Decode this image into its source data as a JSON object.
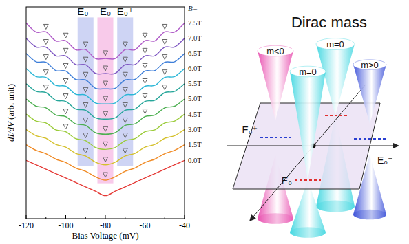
{
  "chart_data": {
    "type": "line",
    "xlabel": "Bias Voltage (mV)",
    "ylabel": "dI/dV (arb. unit)",
    "series_title": "B=",
    "x": [
      -120,
      -115,
      -110,
      -105,
      -100,
      -95,
      -90,
      -85,
      -80,
      -75,
      -70,
      -65,
      -60,
      -55,
      -50,
      -45,
      -40
    ],
    "xlim": [
      -120,
      -40
    ],
    "xticks": [
      -120,
      -100,
      -80,
      -60,
      -40
    ],
    "ylim": [
      0,
      12
    ],
    "tick_labels": "x",
    "marker": "triangle",
    "series": [
      {
        "name": "0.0T",
        "color": "#e53935",
        "values": [
          3.3,
          3.05,
          2.8,
          2.55,
          2.3,
          2.05,
          1.8,
          1.55,
          1.3,
          1.55,
          1.8,
          2.05,
          2.3,
          2.55,
          2.8,
          3.05,
          3.3
        ]
      },
      {
        "name": "1.5T",
        "color": "#f08a24",
        "values": [
          4.18,
          3.87,
          3.68,
          3.37,
          3.18,
          2.87,
          2.68,
          2.37,
          2.18,
          2.37,
          2.68,
          2.87,
          3.18,
          3.37,
          3.68,
          3.87,
          4.18
        ],
        "peaks": [
          -80
        ]
      },
      {
        "name": "3.0T",
        "color": "#d4c02a",
        "values": [
          5.05,
          4.7,
          4.55,
          4.2,
          4.05,
          3.7,
          3.55,
          3.2,
          3.05,
          3.2,
          3.55,
          3.7,
          4.05,
          4.2,
          4.55,
          4.7,
          5.05
        ],
        "peaks": [
          -90,
          -80,
          -70
        ]
      },
      {
        "name": "4.5T",
        "color": "#9ccc3c",
        "values": [
          5.92,
          5.53,
          5.42,
          5.03,
          4.92,
          4.53,
          4.42,
          4.03,
          3.92,
          4.03,
          4.42,
          4.53,
          4.92,
          5.03,
          5.42,
          5.53,
          5.92
        ],
        "peaks": [
          -100,
          -90,
          -80,
          -70
        ]
      },
      {
        "name": "5.0T",
        "color": "#4caf50",
        "values": [
          6.78,
          6.37,
          6.28,
          5.87,
          5.78,
          5.37,
          5.28,
          4.87,
          4.78,
          4.87,
          5.28,
          5.37,
          5.78,
          5.87,
          6.28,
          6.37,
          6.78
        ],
        "peaks": [
          -100,
          -90,
          -80,
          -70,
          -60
        ]
      },
      {
        "name": "5.5T",
        "color": "#26a69a",
        "values": [
          7.64,
          7.21,
          7.14,
          6.71,
          6.64,
          6.21,
          6.14,
          5.71,
          5.64,
          5.71,
          6.14,
          6.21,
          6.64,
          6.71,
          7.14,
          7.21,
          7.64
        ],
        "peaks": [
          -110,
          -100,
          -90,
          -80,
          -70,
          -60,
          -50
        ]
      },
      {
        "name": "6.0T",
        "color": "#29b6d6",
        "values": [
          8.5,
          8.05,
          8.0,
          7.55,
          7.5,
          7.05,
          7.0,
          6.55,
          6.5,
          6.55,
          7.0,
          7.05,
          7.5,
          7.55,
          8.0,
          8.05,
          8.5
        ],
        "peaks": [
          -110,
          -100,
          -90,
          -80,
          -70,
          -60,
          -50
        ]
      },
      {
        "name": "6.5T",
        "color": "#3f7fd9",
        "values": [
          9.36,
          8.89,
          8.86,
          8.39,
          8.36,
          7.89,
          7.86,
          7.39,
          7.36,
          7.39,
          7.86,
          7.89,
          8.36,
          8.39,
          8.86,
          8.89,
          9.36
        ],
        "peaks": [
          -110,
          -100,
          -90,
          -80,
          -70,
          -60,
          -50
        ]
      },
      {
        "name": "7.0T",
        "color": "#7e57c2",
        "values": [
          10.22,
          9.73,
          9.72,
          9.23,
          9.22,
          8.73,
          8.72,
          8.23,
          8.22,
          8.23,
          8.72,
          8.73,
          9.22,
          9.23,
          9.72,
          9.73,
          10.22
        ],
        "peaks": [
          -110,
          -100,
          -90,
          -80,
          -70,
          -60,
          -50
        ]
      },
      {
        "name": "7.5T",
        "color": "#b05cc8",
        "values": [
          11.08,
          10.57,
          10.58,
          10.07,
          10.08,
          9.57,
          9.58,
          9.07,
          9.08,
          9.07,
          9.58,
          9.57,
          10.08,
          10.07,
          10.58,
          10.57,
          11.08
        ],
        "peaks": [
          -110,
          -100,
          -90,
          -80,
          -70,
          -60,
          -50
        ]
      }
    ],
    "bands": [
      {
        "label": "E₀⁻",
        "x": [
          -94,
          -86
        ],
        "y": [
          3.0,
          11.4
        ],
        "color": "#aeb8ec"
      },
      {
        "label": "E₀",
        "x": [
          -84,
          -76
        ],
        "y": [
          2.0,
          11.4
        ],
        "color": "#f3a6dc"
      },
      {
        "label": "E₀⁺",
        "x": [
          -74,
          -66
        ],
        "y": [
          3.0,
          11.4
        ],
        "color": "#aeb8ec"
      }
    ]
  },
  "diagram": {
    "title": "Dirac mass",
    "cones": [
      {
        "label": "m<0",
        "color": "#e84cae"
      },
      {
        "label": "m=0",
        "color": "#3fd6e0"
      },
      {
        "label": "m=0",
        "color": "#3fd6e0"
      },
      {
        "label": "m>0",
        "color": "#3a4fd8"
      }
    ],
    "levels": [
      {
        "label": "E₀⁺",
        "color": "#2a3fd0"
      },
      {
        "label": "E₀",
        "color": "#e03030"
      },
      {
        "label": "E₀⁻",
        "color": "#2a3fd0"
      }
    ]
  }
}
